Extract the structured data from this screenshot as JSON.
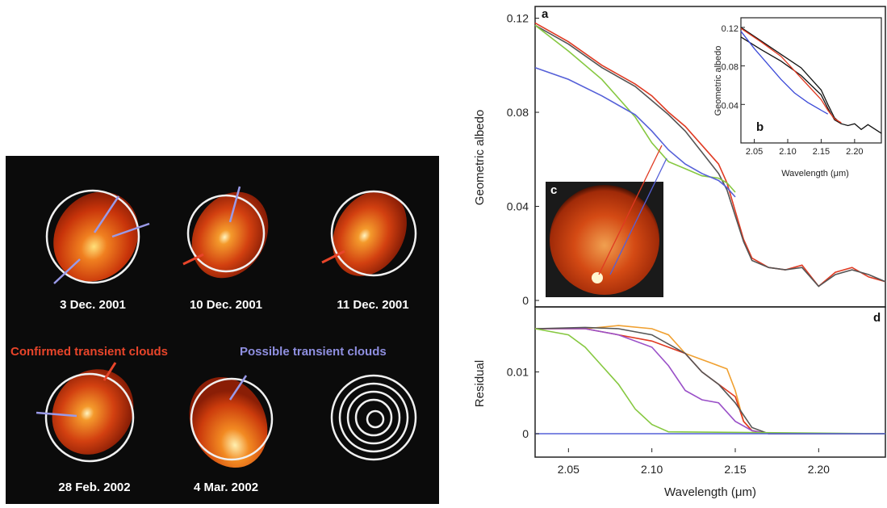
{
  "left_panel": {
    "disks": [
      {
        "label": "3 Dec. 2001"
      },
      {
        "label": "10 Dec. 2001"
      },
      {
        "label": "11 Dec. 2001"
      },
      {
        "label": "28 Feb. 2002"
      },
      {
        "label": "4 Mar. 2002"
      }
    ],
    "legend_confirmed": "Confirmed transient clouds",
    "legend_possible": "Possible transient clouds",
    "colors": {
      "confirmed": "#e8452a",
      "possible": "#8f8fe0",
      "disk": "#c8380c",
      "bg": "#0b0b0b"
    }
  },
  "chart_data": [
    {
      "panel": "a",
      "type": "line",
      "xlabel": "",
      "ylabel": "Geometric albedo",
      "xlim": [
        2.03,
        2.24
      ],
      "ylim": [
        0,
        0.125
      ],
      "yticks": [
        "0",
        "0.04",
        "0.08",
        "0.12"
      ],
      "series": [
        {
          "color": "#e03a22",
          "x": [
            2.03,
            2.05,
            2.07,
            2.09,
            2.1,
            2.11,
            2.12,
            2.13,
            2.14,
            2.145,
            2.15,
            2.155,
            2.16,
            2.17,
            2.18,
            2.19,
            2.2,
            2.21,
            2.22,
            2.23,
            2.24
          ],
          "y": [
            0.118,
            0.11,
            0.1,
            0.092,
            0.087,
            0.08,
            0.074,
            0.066,
            0.058,
            0.05,
            0.038,
            0.026,
            0.018,
            0.014,
            0.013,
            0.015,
            0.006,
            0.012,
            0.014,
            0.01,
            0.008
          ]
        },
        {
          "color": "#555555",
          "x": [
            2.03,
            2.05,
            2.07,
            2.09,
            2.1,
            2.11,
            2.12,
            2.13,
            2.14,
            2.145,
            2.15,
            2.155,
            2.16,
            2.17,
            2.18,
            2.19,
            2.2,
            2.21,
            2.22,
            2.23,
            2.24
          ],
          "y": [
            0.117,
            0.109,
            0.099,
            0.091,
            0.085,
            0.079,
            0.072,
            0.063,
            0.054,
            0.047,
            0.036,
            0.025,
            0.017,
            0.014,
            0.013,
            0.014,
            0.006,
            0.011,
            0.013,
            0.011,
            0.008
          ]
        },
        {
          "color": "#86c840",
          "x": [
            2.03,
            2.05,
            2.07,
            2.09,
            2.1,
            2.11,
            2.12,
            2.13,
            2.14,
            2.145,
            2.15
          ],
          "y": [
            0.117,
            0.106,
            0.094,
            0.078,
            0.067,
            0.059,
            0.056,
            0.053,
            0.052,
            0.05,
            0.046
          ]
        },
        {
          "color": "#5560d8",
          "x": [
            2.03,
            2.05,
            2.07,
            2.09,
            2.1,
            2.11,
            2.12,
            2.13,
            2.14,
            2.145,
            2.15
          ],
          "y": [
            0.099,
            0.094,
            0.087,
            0.079,
            0.072,
            0.064,
            0.058,
            0.054,
            0.051,
            0.048,
            0.044
          ]
        }
      ]
    },
    {
      "panel": "b",
      "type": "line",
      "xlabel": "Wavelength (μm)",
      "ylabel": "Geometric albedo",
      "xlim": [
        2.03,
        2.24
      ],
      "ylim": [
        0,
        0.13
      ],
      "xticks": [
        "2.05",
        "2.10",
        "2.15",
        "2.20"
      ],
      "yticks": [
        "0.04",
        "0.08",
        "0.12"
      ],
      "series": [
        {
          "color": "#111111",
          "x": [
            2.03,
            2.06,
            2.09,
            2.12,
            2.15,
            2.16,
            2.17,
            2.18,
            2.19,
            2.2,
            2.21,
            2.22,
            2.24
          ],
          "y": [
            0.12,
            0.106,
            0.092,
            0.078,
            0.055,
            0.04,
            0.026,
            0.02,
            0.018,
            0.02,
            0.014,
            0.019,
            0.01
          ]
        },
        {
          "color": "#111111",
          "x": [
            2.03,
            2.06,
            2.09,
            2.12,
            2.15,
            2.16,
            2.17,
            2.18
          ],
          "y": [
            0.11,
            0.097,
            0.085,
            0.07,
            0.05,
            0.036,
            0.024,
            0.02
          ]
        },
        {
          "color": "#e03a22",
          "x": [
            2.03,
            2.06,
            2.09,
            2.11,
            2.13,
            2.15,
            2.16,
            2.17,
            2.18
          ],
          "y": [
            0.119,
            0.105,
            0.09,
            0.075,
            0.06,
            0.045,
            0.034,
            0.025,
            0.021
          ]
        },
        {
          "color": "#3c4ad8",
          "x": [
            2.03,
            2.05,
            2.07,
            2.09,
            2.11,
            2.13,
            2.15,
            2.16
          ],
          "y": [
            0.116,
            0.098,
            0.082,
            0.066,
            0.052,
            0.042,
            0.034,
            0.03
          ]
        }
      ]
    },
    {
      "panel": "d",
      "type": "line",
      "xlabel": "Wavelength (μm)",
      "ylabel": "Residual",
      "xlim": [
        2.03,
        2.24
      ],
      "ylim": [
        -0.003,
        0.02
      ],
      "xticks": [
        "2.05",
        "2.10",
        "2.15",
        "2.20"
      ],
      "yticks": [
        "0",
        "0.01"
      ],
      "series": [
        {
          "color": "#f0a030",
          "x": [
            2.03,
            2.06,
            2.08,
            2.1,
            2.11,
            2.12,
            2.13,
            2.135,
            2.14,
            2.145,
            2.15,
            2.155,
            2.16,
            2.17,
            2.24
          ],
          "y": [
            0.017,
            0.017,
            0.0175,
            0.017,
            0.016,
            0.013,
            0.012,
            0.0115,
            0.011,
            0.0105,
            0.007,
            0.002,
            0.0005,
            0,
            0
          ]
        },
        {
          "color": "#e03a22",
          "x": [
            2.03,
            2.06,
            2.08,
            2.1,
            2.12,
            2.13,
            2.14,
            2.145,
            2.15,
            2.155,
            2.16,
            2.17,
            2.24
          ],
          "y": [
            0.017,
            0.017,
            0.016,
            0.015,
            0.013,
            0.01,
            0.008,
            0.007,
            0.006,
            0.002,
            0.0005,
            0,
            0
          ]
        },
        {
          "color": "#9a50c8",
          "x": [
            2.03,
            2.06,
            2.08,
            2.1,
            2.11,
            2.12,
            2.13,
            2.14,
            2.15,
            2.16,
            2.17,
            2.24
          ],
          "y": [
            0.017,
            0.017,
            0.016,
            0.014,
            0.011,
            0.007,
            0.0055,
            0.005,
            0.002,
            0.0005,
            0,
            0
          ]
        },
        {
          "color": "#555555",
          "x": [
            2.03,
            2.06,
            2.08,
            2.1,
            2.12,
            2.13,
            2.14,
            2.15,
            2.16,
            2.17,
            2.24
          ],
          "y": [
            0.017,
            0.0172,
            0.017,
            0.016,
            0.013,
            0.01,
            0.008,
            0.005,
            0.001,
            0,
            0
          ]
        },
        {
          "color": "#86c840",
          "x": [
            2.03,
            2.05,
            2.06,
            2.07,
            2.08,
            2.09,
            2.1,
            2.11,
            2.24
          ],
          "y": [
            0.017,
            0.016,
            0.014,
            0.011,
            0.008,
            0.004,
            0.0015,
            0.0003,
            0
          ]
        },
        {
          "color": "#5560d8",
          "x": [
            2.03,
            2.24
          ],
          "y": [
            0,
            0
          ]
        }
      ]
    }
  ],
  "labels": {
    "a": "a",
    "b": "b",
    "c": "c",
    "d": "d"
  }
}
